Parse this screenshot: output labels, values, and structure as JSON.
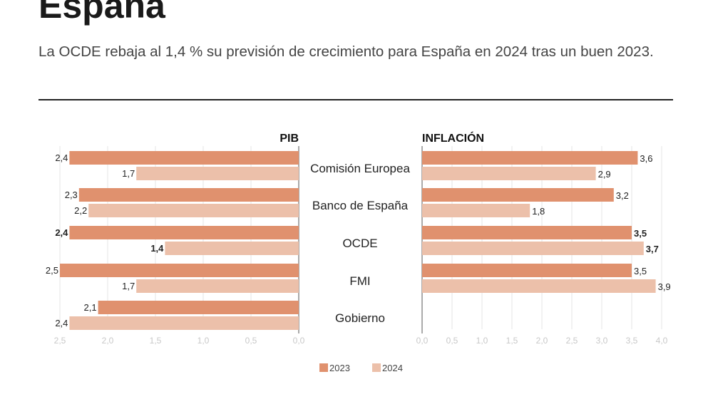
{
  "header": {
    "title": "España",
    "subtitle": "La OCDE rebaja al 1,4 % su previsión de crecimiento para España en 2024 tras un buen 2023."
  },
  "colors": {
    "2023": "#e0916e",
    "2024": "#ecc0aa",
    "grid": "#e6e6e6",
    "tick": "#c8c8c8"
  },
  "chart_data": [
    {
      "type": "bar",
      "orientation": "horizontal",
      "direction": "reversed",
      "title": "PIB",
      "categories": [
        "Comisión Europea",
        "Banco de España",
        "OCDE",
        "FMI",
        "Gobierno"
      ],
      "series": [
        {
          "name": "2023",
          "values": [
            2.4,
            2.3,
            2.4,
            2.5,
            2.1
          ],
          "labels": [
            "2,4",
            "2,3",
            "2,4",
            "2,5",
            "2,1"
          ]
        },
        {
          "name": "2024",
          "values": [
            1.7,
            2.2,
            1.4,
            1.7,
            2.4
          ],
          "labels": [
            "1,7",
            "2,2",
            "1,4",
            "1,7",
            "2,4"
          ]
        }
      ],
      "highlight_category": "OCDE",
      "xlim": [
        0,
        2.5
      ],
      "ticks": [
        "2,5",
        "2,0",
        "1,5",
        "1,0",
        "0,5",
        "0,0"
      ],
      "grid": true
    },
    {
      "type": "bar",
      "orientation": "horizontal",
      "title": "INFLACIÓN",
      "categories": [
        "Comisión Europea",
        "Banco de España",
        "OCDE",
        "FMI",
        "Gobierno"
      ],
      "series": [
        {
          "name": "2023",
          "values": [
            3.6,
            3.2,
            3.5,
            3.5,
            null
          ],
          "labels": [
            "3,6",
            "3,2",
            "3,5",
            "3,5",
            ""
          ]
        },
        {
          "name": "2024",
          "values": [
            2.9,
            1.8,
            3.7,
            3.9,
            null
          ],
          "labels": [
            "2,9",
            "1,8",
            "3,7",
            "3,9",
            ""
          ]
        }
      ],
      "highlight_category": "OCDE",
      "xlim": [
        0,
        4.0
      ],
      "ticks": [
        "0,0",
        "0,5",
        "1,0",
        "1,5",
        "2,0",
        "2,5",
        "3,0",
        "3,5",
        "4,0"
      ],
      "grid": true
    }
  ],
  "legend": {
    "position": "bottom",
    "items": [
      "2023",
      "2024"
    ]
  }
}
